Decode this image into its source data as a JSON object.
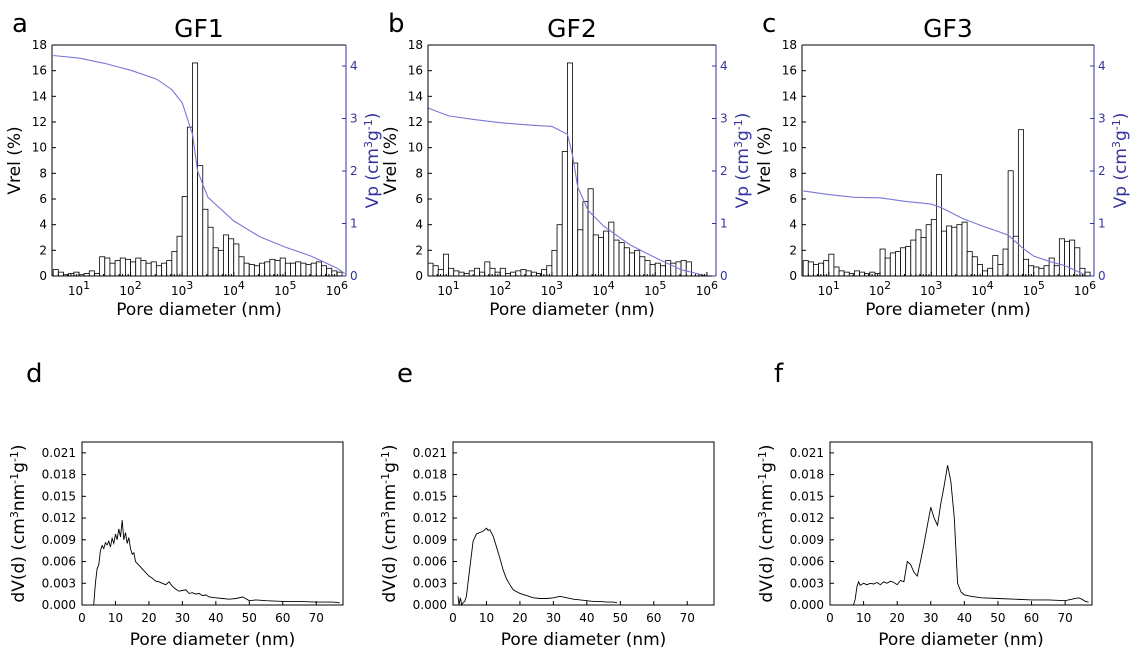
{
  "chart_data": [
    {
      "panel": "a",
      "title": "GF1",
      "type": "bar",
      "xlabel": "Pore diameter (nm)",
      "x_scale": "log",
      "xlim": [
        3,
        1500000
      ],
      "x_ticks": [
        10,
        100,
        1000,
        10000,
        100000,
        1000000
      ],
      "x_tick_labels": [
        [
          "10",
          "1"
        ],
        [
          "10",
          "2"
        ],
        [
          "10",
          "3"
        ],
        [
          "10",
          "4"
        ],
        [
          "10",
          "5"
        ],
        [
          "10",
          "6"
        ]
      ],
      "ylabel": "Vrel (%)",
      "ylim": [
        0,
        18
      ],
      "y_ticks": [
        "0",
        "2",
        "4",
        "6",
        "8",
        "10",
        "12",
        "14",
        "16",
        "18"
      ],
      "y2label": {
        "base": "Vp (cm",
        "sup1": "3",
        "mid": "g",
        "sup2": "-1",
        "end": ")"
      },
      "y2lim": [
        0,
        4.4
      ],
      "y2_ticks": [
        "0",
        "1",
        "2",
        "3",
        "4"
      ],
      "bars_log10_start": 0.5,
      "bars_log10_width": 0.1,
      "bars": [
        0.5,
        0.3,
        0.1,
        0.2,
        0.3,
        0.1,
        0.2,
        0.4,
        0.2,
        1.5,
        1.4,
        1.0,
        1.2,
        1.4,
        1.3,
        1.1,
        1.4,
        1.2,
        1.0,
        1.1,
        0.8,
        1.0,
        1.2,
        1.9,
        3.1,
        6.2,
        11.6,
        16.6,
        8.6,
        5.2,
        3.8,
        2.2,
        2.0,
        3.2,
        2.9,
        2.5,
        1.5,
        1.0,
        0.9,
        0.8,
        1.0,
        1.1,
        1.3,
        1.2,
        1.4,
        1.0,
        1.0,
        1.1,
        1.0,
        0.9,
        1.0,
        1.1,
        0.8,
        0.6,
        0.4,
        0.3
      ],
      "series": [
        {
          "name": "cumulative pore volume",
          "axis": "right",
          "log10_x": [
            0.5,
            1.0,
            1.5,
            2.0,
            2.5,
            2.8,
            3.0,
            3.2,
            3.3,
            3.5,
            4.0,
            4.5,
            5.0,
            5.5,
            6.0,
            6.15
          ],
          "y": [
            4.2,
            4.15,
            4.05,
            3.92,
            3.75,
            3.55,
            3.3,
            2.7,
            2.0,
            1.5,
            1.05,
            0.75,
            0.55,
            0.38,
            0.15,
            0.05
          ]
        }
      ]
    },
    {
      "panel": "b",
      "title": "GF2",
      "type": "bar",
      "xlabel": "Pore diameter (nm)",
      "x_scale": "log",
      "xlim": [
        4,
        1500000
      ],
      "x_ticks": [
        10,
        100,
        1000,
        10000,
        100000,
        1000000
      ],
      "x_tick_labels": [
        [
          "10",
          "1"
        ],
        [
          "10",
          "2"
        ],
        [
          "10",
          "3"
        ],
        [
          "10",
          "4"
        ],
        [
          "10",
          "5"
        ],
        [
          "10",
          "6"
        ]
      ],
      "ylabel": "Vrel (%)",
      "ylim": [
        0,
        18
      ],
      "y_ticks": [
        "0",
        "2",
        "4",
        "6",
        "8",
        "10",
        "12",
        "14",
        "16",
        "18"
      ],
      "y2label": {
        "base": "Vp (cm",
        "sup1": "3",
        "mid": "g",
        "sup2": "-1",
        "end": ")"
      },
      "y2lim": [
        0,
        4.4
      ],
      "y2_ticks": [
        "0",
        "1",
        "2",
        "3",
        "4"
      ],
      "bars_log10_start": 0.6,
      "bars_log10_width": 0.1,
      "bars": [
        1.0,
        0.8,
        0.5,
        1.7,
        0.6,
        0.4,
        0.3,
        0.2,
        0.4,
        0.6,
        0.3,
        1.1,
        0.6,
        0.3,
        0.6,
        0.2,
        0.3,
        0.4,
        0.5,
        0.4,
        0.3,
        0.2,
        0.5,
        0.8,
        2.0,
        4.0,
        9.7,
        16.6,
        8.8,
        3.6,
        5.8,
        6.8,
        3.2,
        3.0,
        3.5,
        4.2,
        2.8,
        2.6,
        2.2,
        1.8,
        2.0,
        1.5,
        1.2,
        0.9,
        1.0,
        0.8,
        1.2,
        1.0,
        1.1,
        1.2,
        1.1
      ],
      "series": [
        {
          "name": "cumulative pore volume",
          "axis": "right",
          "log10_x": [
            0.6,
            1.0,
            1.5,
            2.0,
            2.5,
            3.0,
            3.3,
            3.4,
            3.5,
            3.7,
            4.0,
            4.5,
            5.0,
            5.5,
            6.0
          ],
          "y": [
            3.2,
            3.05,
            2.98,
            2.92,
            2.88,
            2.85,
            2.7,
            2.3,
            1.7,
            1.25,
            0.95,
            0.6,
            0.35,
            0.12,
            0.0
          ]
        }
      ]
    },
    {
      "panel": "c",
      "title": "GF3",
      "type": "bar",
      "xlabel": "Pore diameter (nm)",
      "x_scale": "log",
      "xlim": [
        3,
        1500000
      ],
      "x_ticks": [
        10,
        100,
        1000,
        10000,
        100000,
        1000000
      ],
      "x_tick_labels": [
        [
          "10",
          "1"
        ],
        [
          "10",
          "2"
        ],
        [
          "10",
          "3"
        ],
        [
          "10",
          "4"
        ],
        [
          "10",
          "5"
        ],
        [
          "10",
          "6"
        ]
      ],
      "ylabel": "Vrel (%)",
      "ylim": [
        0,
        18
      ],
      "y_ticks": [
        "0",
        "2",
        "4",
        "6",
        "8",
        "10",
        "12",
        "14",
        "16",
        "18"
      ],
      "y2label": {
        "base": "Vp (cm",
        "sup1": "3",
        "mid": "g",
        "sup2": "-1",
        "end": ")"
      },
      "y2lim": [
        0,
        4.4
      ],
      "y2_ticks": [
        "0",
        "1",
        "2",
        "3",
        "4"
      ],
      "bars_log10_start": 0.5,
      "bars_log10_width": 0.1,
      "bars": [
        1.2,
        1.1,
        0.9,
        1.0,
        1.2,
        1.7,
        0.7,
        0.4,
        0.3,
        0.2,
        0.4,
        0.3,
        0.2,
        0.3,
        0.2,
        2.1,
        1.4,
        1.8,
        1.9,
        2.2,
        2.3,
        2.8,
        3.6,
        3.0,
        4.0,
        4.4,
        7.9,
        3.5,
        3.9,
        3.8,
        4.0,
        4.2,
        1.9,
        1.5,
        0.9,
        0.4,
        0.6,
        1.6,
        0.9,
        2.1,
        8.2,
        3.1,
        11.4,
        1.3,
        0.8,
        0.7,
        0.6,
        0.8,
        1.4,
        0.8,
        2.9,
        2.7,
        2.8,
        2.2,
        0.6,
        0.3
      ],
      "series": [
        {
          "name": "cumulative pore volume",
          "axis": "right",
          "log10_x": [
            0.5,
            1.0,
            1.5,
            2.0,
            2.5,
            3.0,
            3.2,
            3.4,
            3.6,
            4.0,
            4.3,
            4.5,
            4.65,
            4.8,
            5.0,
            5.3,
            5.6,
            6.0
          ],
          "y": [
            1.62,
            1.55,
            1.5,
            1.49,
            1.42,
            1.37,
            1.3,
            1.2,
            1.1,
            0.95,
            0.85,
            0.78,
            0.65,
            0.52,
            0.38,
            0.28,
            0.2,
            0.02
          ]
        }
      ]
    },
    {
      "panel": "d",
      "type": "line",
      "xlabel": "Pore diameter (nm)",
      "xlim": [
        0,
        78
      ],
      "x_ticks": [
        "0",
        "10",
        "20",
        "30",
        "40",
        "50",
        "60",
        "70"
      ],
      "ylabel": {
        "base": "dV(d) (cm",
        "sup1": "3",
        "mid": "nm",
        "sup2": "-1",
        "mid2": "g",
        "sup3": "-1",
        "end": ")"
      },
      "ylim": [
        0,
        0.0225
      ],
      "y_ticks": [
        "0.000",
        "0.003",
        "0.006",
        "0.009",
        "0.012",
        "0.015",
        "0.018",
        "0.021"
      ],
      "x": [
        3.5,
        4.0,
        4.5,
        5.0,
        5.5,
        6.0,
        6.5,
        7.0,
        7.5,
        8.0,
        8.5,
        9.0,
        9.5,
        10.0,
        10.5,
        11.0,
        11.5,
        12.0,
        12.5,
        13.0,
        13.5,
        14.0,
        14.5,
        15.0,
        15.5,
        16,
        17,
        18,
        19,
        20,
        21,
        22,
        23,
        24,
        25,
        26,
        27,
        28,
        29,
        30,
        31,
        32,
        33,
        34,
        35,
        36,
        37,
        38,
        40,
        42,
        44,
        46,
        48,
        50,
        52,
        55,
        60,
        65,
        70,
        75,
        77
      ],
      "y": [
        0.0,
        0.003,
        0.005,
        0.0055,
        0.0075,
        0.0082,
        0.0078,
        0.0086,
        0.0083,
        0.0088,
        0.008,
        0.0092,
        0.0085,
        0.0098,
        0.009,
        0.0105,
        0.0094,
        0.0117,
        0.009,
        0.01,
        0.0085,
        0.0093,
        0.0078,
        0.007,
        0.0072,
        0.006,
        0.0055,
        0.005,
        0.0045,
        0.004,
        0.0037,
        0.0033,
        0.0032,
        0.003,
        0.0028,
        0.0032,
        0.0026,
        0.0022,
        0.0019,
        0.002,
        0.0021,
        0.0016,
        0.0017,
        0.0015,
        0.0016,
        0.0013,
        0.0014,
        0.0011,
        0.001,
        0.0009,
        0.0008,
        0.0009,
        0.0011,
        0.0006,
        0.0007,
        0.0006,
        0.0005,
        0.0005,
        0.0004,
        0.0004,
        0.0003
      ]
    },
    {
      "panel": "e",
      "type": "line",
      "xlabel": "Pore diameter (nm)",
      "xlim": [
        0,
        78
      ],
      "x_ticks": [
        "0",
        "10",
        "20",
        "30",
        "40",
        "50",
        "60",
        "70"
      ],
      "ylabel": {
        "base": "dV(d) (cm",
        "sup1": "3",
        "mid": "nm",
        "sup2": "-1",
        "mid2": "g",
        "sup3": "-1",
        "end": ")"
      },
      "ylim": [
        0,
        0.0225
      ],
      "y_ticks": [
        "0.000",
        "0.003",
        "0.006",
        "0.009",
        "0.012",
        "0.015",
        "0.018",
        "0.021"
      ],
      "x": [
        1.5,
        1.8,
        2.2,
        2.6,
        3.0,
        3.5,
        4.0,
        5.0,
        6.0,
        7.0,
        8.0,
        9.0,
        10.0,
        10.5,
        11.0,
        12.0,
        13.0,
        14.0,
        15.0,
        16.0,
        17.0,
        18.0,
        20.0,
        22.0,
        24.0,
        26.0,
        28.0,
        30.0,
        32.0,
        34.0,
        36.0,
        38.0,
        40.0,
        42.0,
        44.0,
        46.0,
        48.0,
        49.0
      ],
      "y": [
        0.0012,
        0.0,
        0.001,
        0.0,
        0.0003,
        0.0005,
        0.0012,
        0.005,
        0.0088,
        0.0098,
        0.01,
        0.0102,
        0.0106,
        0.0103,
        0.0104,
        0.0095,
        0.008,
        0.0065,
        0.0048,
        0.0036,
        0.0028,
        0.0021,
        0.0016,
        0.0013,
        0.001,
        0.0009,
        0.0009,
        0.001,
        0.0012,
        0.001,
        0.0008,
        0.0007,
        0.0006,
        0.0005,
        0.0005,
        0.0004,
        0.0004,
        0.0003
      ]
    },
    {
      "panel": "f",
      "type": "line",
      "xlabel": "Pore diameter (nm)",
      "xlim": [
        0,
        78
      ],
      "x_ticks": [
        "0",
        "10",
        "20",
        "30",
        "40",
        "50",
        "60",
        "70"
      ],
      "ylabel": {
        "base": "dV(d) (cm",
        "sup1": "3",
        "mid": "nm",
        "sup2": "-1",
        "mid2": "g",
        "sup3": "-1",
        "end": ")"
      },
      "ylim": [
        0,
        0.0225
      ],
      "y_ticks": [
        "0.000",
        "0.003",
        "0.006",
        "0.009",
        "0.012",
        "0.015",
        "0.018",
        "0.021"
      ],
      "x": [
        7.0,
        7.5,
        8.0,
        8.5,
        9.0,
        10,
        11,
        12,
        13,
        14,
        15,
        16,
        17,
        18,
        19,
        20,
        21,
        22,
        23,
        24,
        25,
        26,
        27,
        28,
        29,
        30,
        31,
        32,
        33,
        34,
        35,
        36,
        37,
        38,
        39,
        40,
        42,
        45,
        50,
        55,
        60,
        65,
        70,
        72,
        74,
        75,
        76,
        77
      ],
      "y": [
        0.0,
        0.0008,
        0.0025,
        0.0032,
        0.0027,
        0.003,
        0.0028,
        0.003,
        0.0029,
        0.0031,
        0.0028,
        0.0032,
        0.003,
        0.0033,
        0.0031,
        0.0028,
        0.0034,
        0.0032,
        0.006,
        0.0056,
        0.0045,
        0.004,
        0.0062,
        0.0085,
        0.011,
        0.0135,
        0.012,
        0.011,
        0.014,
        0.0165,
        0.0193,
        0.017,
        0.012,
        0.003,
        0.0018,
        0.0014,
        0.0012,
        0.001,
        0.0009,
        0.0008,
        0.0007,
        0.0007,
        0.0006,
        0.0008,
        0.001,
        0.0008,
        0.0005,
        0.0004
      ]
    }
  ]
}
